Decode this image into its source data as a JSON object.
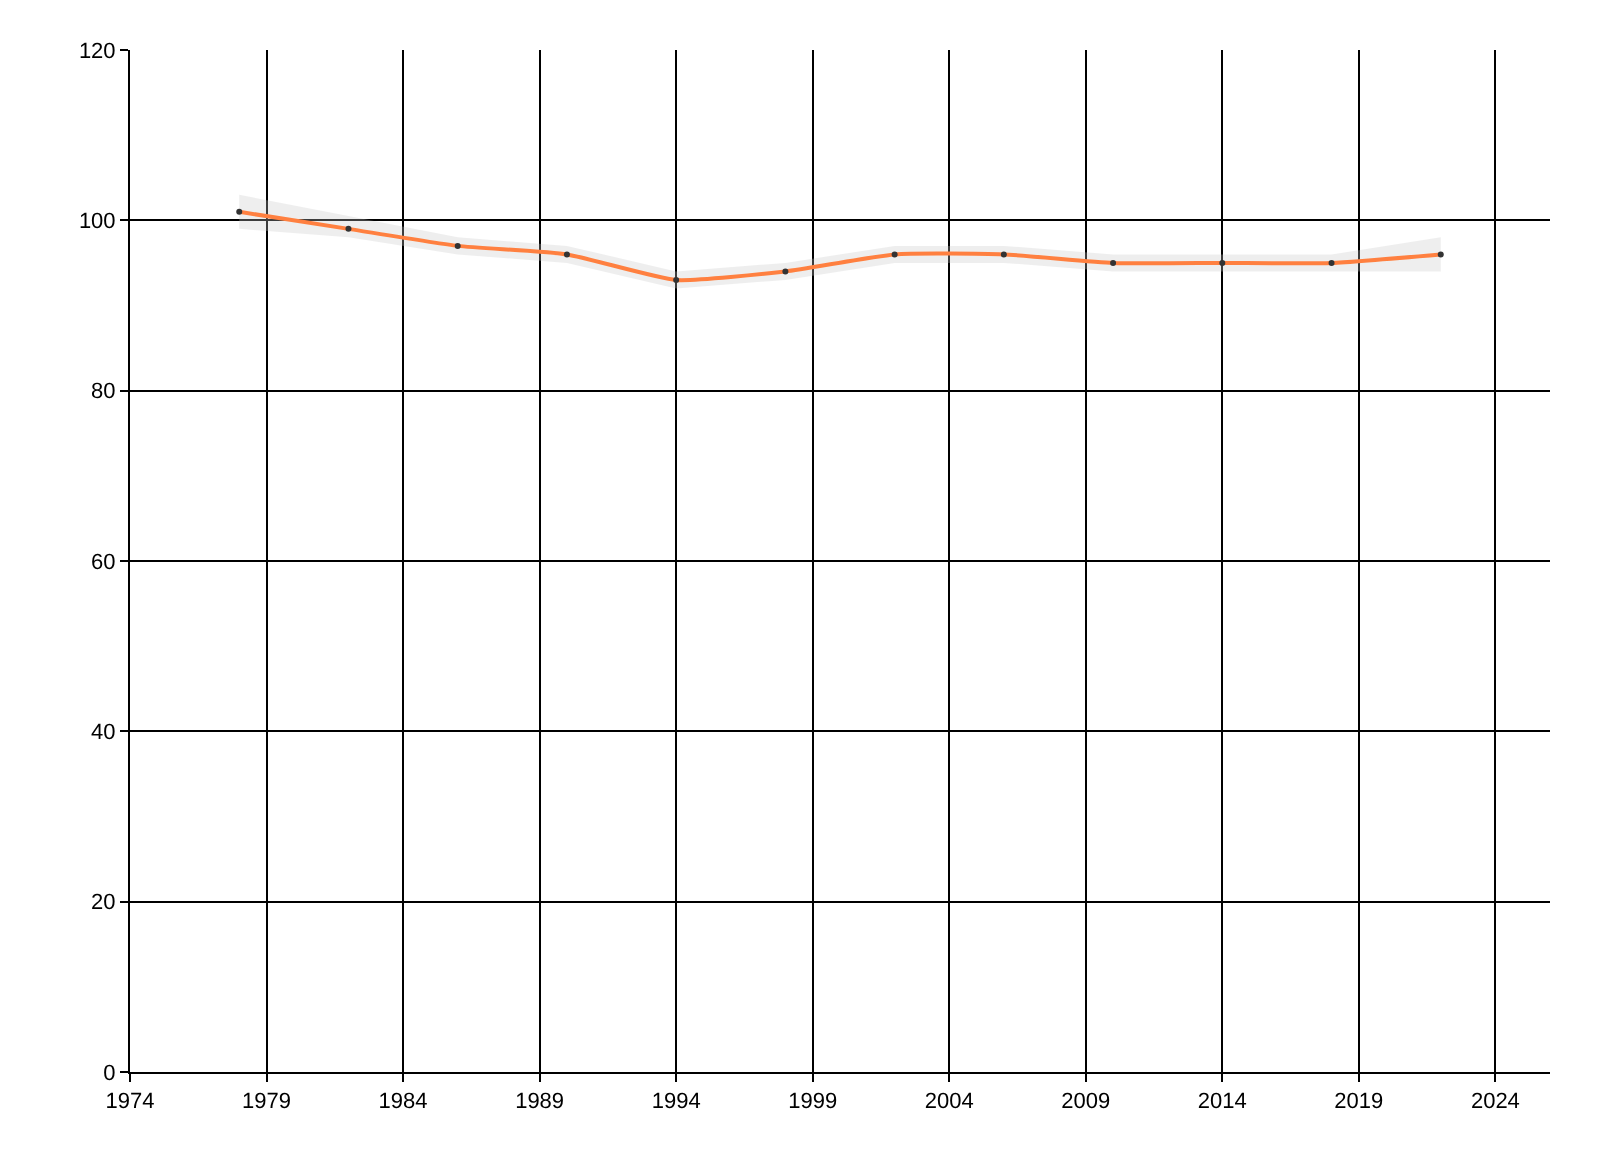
{
  "chart_data": {
    "type": "line",
    "x": [
      1978,
      1982,
      1986,
      1990,
      1994,
      1998,
      2002,
      2006,
      2010,
      2014,
      2018,
      2022
    ],
    "series": [
      {
        "color": "#ff8040",
        "values": [
          101,
          99,
          97,
          96,
          93,
          94,
          96,
          96,
          95,
          95,
          95,
          96
        ],
        "lower": [
          99,
          98,
          96,
          95,
          92,
          93,
          95,
          95,
          94,
          94,
          94,
          94
        ],
        "upper": [
          103,
          100.5,
          98,
          97,
          94,
          95,
          97,
          97,
          96,
          96,
          96,
          98
        ]
      }
    ],
    "xlim": [
      1974,
      2026
    ],
    "xticks": [
      1974,
      1979,
      1984,
      1989,
      1994,
      1999,
      2004,
      2009,
      2014,
      2019,
      2024
    ],
    "ylim": [
      0,
      120
    ],
    "yticks": [
      0,
      20,
      40,
      60,
      80,
      100,
      120
    ],
    "grid": true,
    "marker": "circle",
    "line_style": "solid"
  }
}
